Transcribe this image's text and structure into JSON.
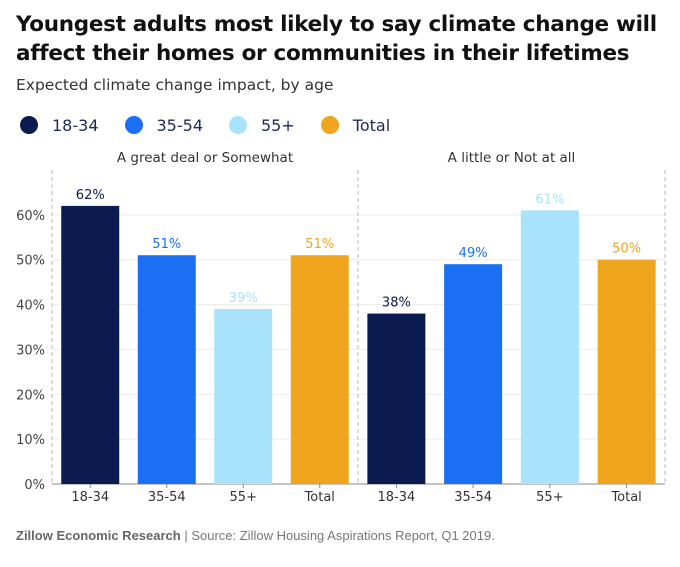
{
  "title": "Youngest adults most likely to say climate change will affect their homes or communities in their lifetimes",
  "subtitle": "Expected climate change impact, by age",
  "legend": [
    {
      "label": "18-34",
      "color": "#0b1a4f"
    },
    {
      "label": "35-54",
      "color": "#1a6ff2"
    },
    {
      "label": "55+",
      "color": "#a8e3fb"
    },
    {
      "label": "Total",
      "color": "#f0a51e"
    }
  ],
  "footer": {
    "org": "Zillow Economic Research",
    "separator": " | ",
    "source": "Source: Zillow Housing Aspirations Report, Q1 2019."
  },
  "chart_data": {
    "type": "bar",
    "ylim": [
      0,
      70
    ],
    "yticks": [
      "0%",
      "10%",
      "20%",
      "30%",
      "40%",
      "50%",
      "60%"
    ],
    "grid": true,
    "legend_position": "top-left",
    "panels": [
      {
        "label": "A great deal or Somewhat",
        "categories": [
          "18-34",
          "35-54",
          "55+",
          "Total"
        ],
        "values": [
          62,
          51,
          39,
          51
        ],
        "value_labels": [
          "62%",
          "51%",
          "39%",
          "51%"
        ]
      },
      {
        "label": "A little or Not at all",
        "categories": [
          "18-34",
          "35-54",
          "55+",
          "Total"
        ],
        "values": [
          38,
          49,
          61,
          50
        ],
        "value_labels": [
          "38%",
          "49%",
          "61%",
          "50%"
        ]
      }
    ],
    "colors": [
      "#0b1a4f",
      "#1a6ff2",
      "#a8e3fb",
      "#f0a51e"
    ]
  }
}
